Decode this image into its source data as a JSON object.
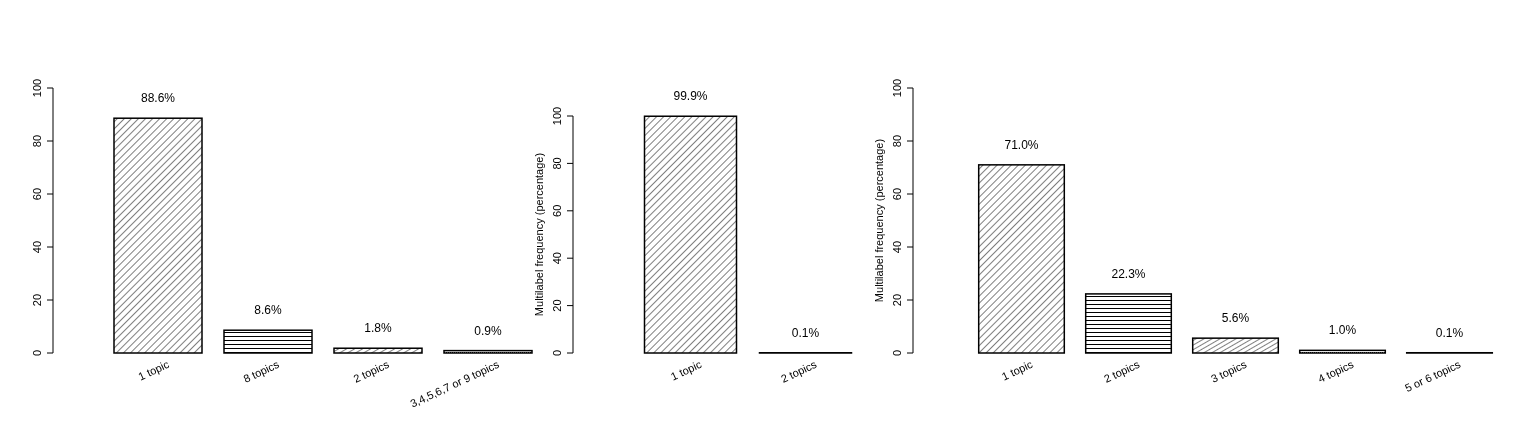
{
  "chart_data": [
    {
      "type": "bar",
      "categories": [
        "1 topic",
        "8 topics",
        "2 topics",
        "3,4,5,6,7 or 9 topics"
      ],
      "values": [
        88.6,
        8.6,
        1.8,
        0.9
      ],
      "value_labels": [
        "88.6%",
        "8.6%",
        "1.8%",
        "0.9%"
      ],
      "ylim": [
        0,
        100
      ],
      "yticks": [
        0,
        20,
        40,
        60,
        80,
        100
      ]
    },
    {
      "type": "bar",
      "categories": [
        "1 topic",
        "2 topics"
      ],
      "values": [
        99.9,
        0.1
      ],
      "value_labels": [
        "99.9%",
        "0.1%"
      ],
      "ylabel": "Multilabel frequency (percentage)",
      "ylim": [
        0,
        100
      ],
      "yticks": [
        0,
        20,
        40,
        60,
        80,
        100
      ]
    },
    {
      "type": "bar",
      "categories": [
        "1 topic",
        "2 topics",
        "3 topics",
        "4 topics",
        "5 or 6 topics"
      ],
      "values": [
        71.0,
        22.3,
        5.6,
        1.0,
        0.1
      ],
      "value_labels": [
        "71.0%",
        "22.3%",
        "5.6%",
        "1.0%",
        "0.1%"
      ],
      "ylabel": "Multilabel frequency (percentage)",
      "ylim": [
        0,
        100
      ],
      "yticks": [
        0,
        20,
        40,
        60,
        80,
        100
      ]
    }
  ]
}
